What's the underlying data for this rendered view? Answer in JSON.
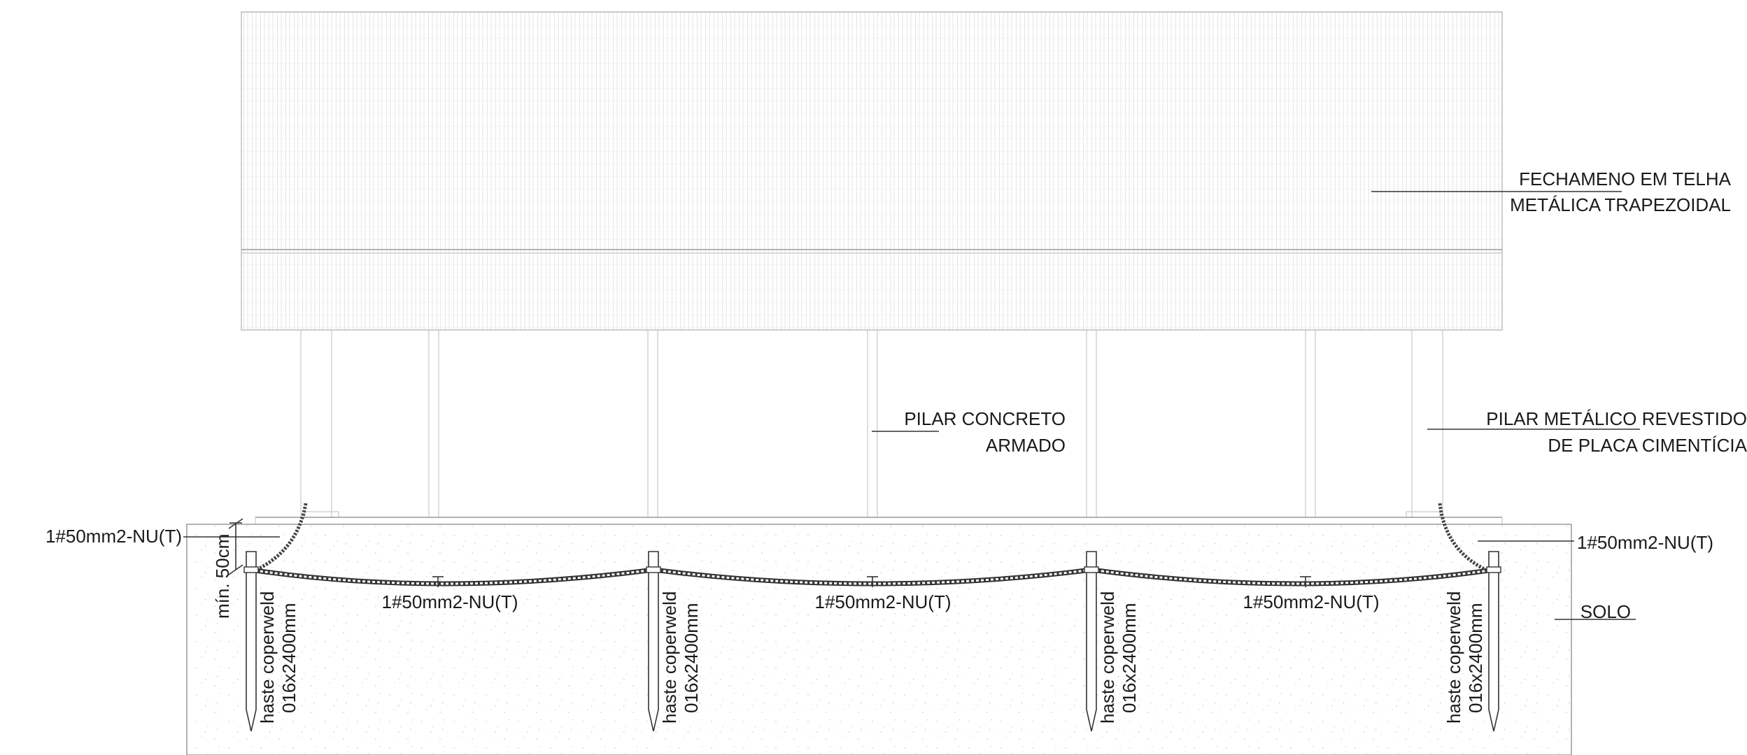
{
  "labels": {
    "roof_line1": "FECHAMENO EM TELHA",
    "roof_line2": "METÁLICA TRAPEZOIDAL",
    "concrete_line1": "PILAR CONCRETO",
    "concrete_line2": "ARMADO",
    "metal_line1": "PILAR METÁLICO REVESTIDO",
    "metal_line2": "DE PLACA CIMENTÍCIA",
    "cable_left": "1#50mm2-NU(T)",
    "cable_right": "1#50mm2-NU(T)",
    "cable_span_1": "1#50mm2-NU(T)",
    "cable_span_2": "1#50mm2-NU(T)",
    "cable_span_3": "1#50mm2-NU(T)",
    "soil": "SOLO",
    "depth": "mín. 50cm"
  },
  "rods": [
    {
      "line1": "haste coperweld",
      "line2": "016x2400mm"
    },
    {
      "line1": "haste coperweld",
      "line2": "016x2400mm"
    },
    {
      "line1": "haste coperweld",
      "line2": "016x2400mm"
    },
    {
      "line1": "haste coperweld",
      "line2": "016x2400mm"
    }
  ],
  "colors": {
    "ink": "#333333",
    "panel_line": "#c8c8c8",
    "soil_speckle": "#d0d0d0"
  }
}
